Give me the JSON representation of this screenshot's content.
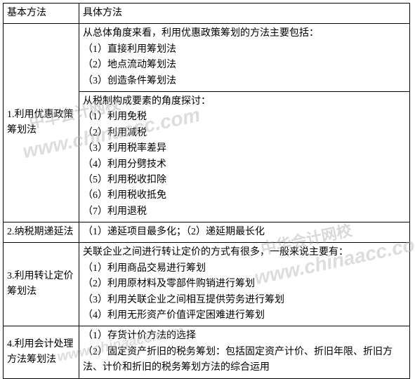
{
  "table": {
    "header": {
      "col1": "基本方法",
      "col2": "具体方法"
    },
    "rows": [
      {
        "label": "1.利用优惠政策筹划法",
        "cells": [
          "从总体角度来看，利用优惠政策筹划的方法主要包括：\n（1）直接利用筹划法\n（2）地点流动筹划法\n（3）创造条件筹划法",
          "从税制构成要素的角度探讨：\n（1）利用免税\n（2）利用减税\n（3）利用税率差异\n（4）利用分劈技术\n（5）利用税收扣除\n（6）利用税收抵免\n（7）利用退税"
        ]
      },
      {
        "label": "2.纳税期递延法",
        "cells": [
          "（1）递延项目最多化；（2）递延期最长化"
        ]
      },
      {
        "label": "3.利用转让定价筹划法",
        "cells": [
          "关联企业之间进行转让定价的方式有很多，一般来说主要有：\n（1）利用商品交易进行筹划\n（2）利用原材料及零部件购销进行筹划\n（3）利用关联企业之间相互提供劳务进行筹划\n（4）利用无形资产价值评定困难进行筹划"
        ]
      },
      {
        "label": "4.利用会计处理方法筹划法",
        "cells": [
          "（1）存货计价方法的选择\n（2）固定资产折旧的税务筹划：包括固定资产计价、折旧年限、折旧方法、计价和折旧的税务筹划方法的综合运用"
        ]
      }
    ]
  },
  "watermarks": {
    "url": "www.chinaacc.com",
    "brand_cn": "中华会计网校"
  },
  "colors": {
    "border": "#000000",
    "text": "#000000",
    "background": "#ffffff",
    "watermark": "rgba(180,180,180,0.45)"
  }
}
